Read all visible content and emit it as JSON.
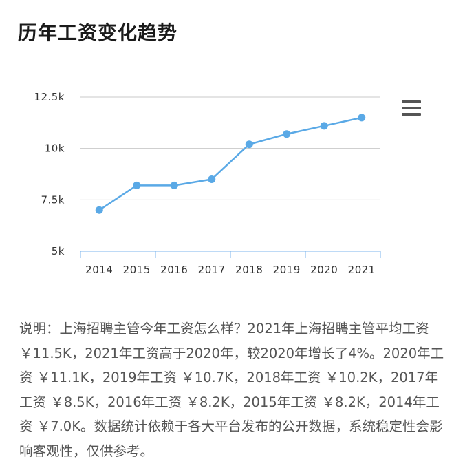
{
  "title": "历年工资变化趋势",
  "menu_icon": "hamburger-menu-icon",
  "colors": {
    "line": "#5aa9e6",
    "grid": "#c8c8c8",
    "axis": "#7cb5ec"
  },
  "chart_data": {
    "type": "line",
    "categories": [
      "2014",
      "2015",
      "2016",
      "2017",
      "2018",
      "2019",
      "2020",
      "2021"
    ],
    "series": [
      {
        "values": [
          7.0,
          8.2,
          8.2,
          8.5,
          10.2,
          10.7,
          11.1,
          11.5
        ]
      }
    ],
    "yticks": [
      {
        "value": 5,
        "label": "5k"
      },
      {
        "value": 7.5,
        "label": "7.5k"
      },
      {
        "value": 10,
        "label": "10k"
      },
      {
        "value": 12.5,
        "label": "12.5k"
      }
    ],
    "ylim": [
      5,
      12.5
    ],
    "grid": true,
    "title": "",
    "xlabel": "",
    "ylabel": ""
  },
  "description": "说明：上海招聘主管今年工资怎么样？2021年上海招聘主管平均工资 ￥11.5K，2021年工资高于2020年，较2020年增长了4%。2020年工资 ￥11.1K，2019年工资 ￥10.7K，2018年工资 ￥10.2K，2017年工资 ￥8.5K，2016年工资 ￥8.2K，2015年工资 ￥8.2K，2014年工资 ￥7.0K。数据统计依赖于各大平台发布的公开数据，系统稳定性会影响客观性，仅供参考。"
}
